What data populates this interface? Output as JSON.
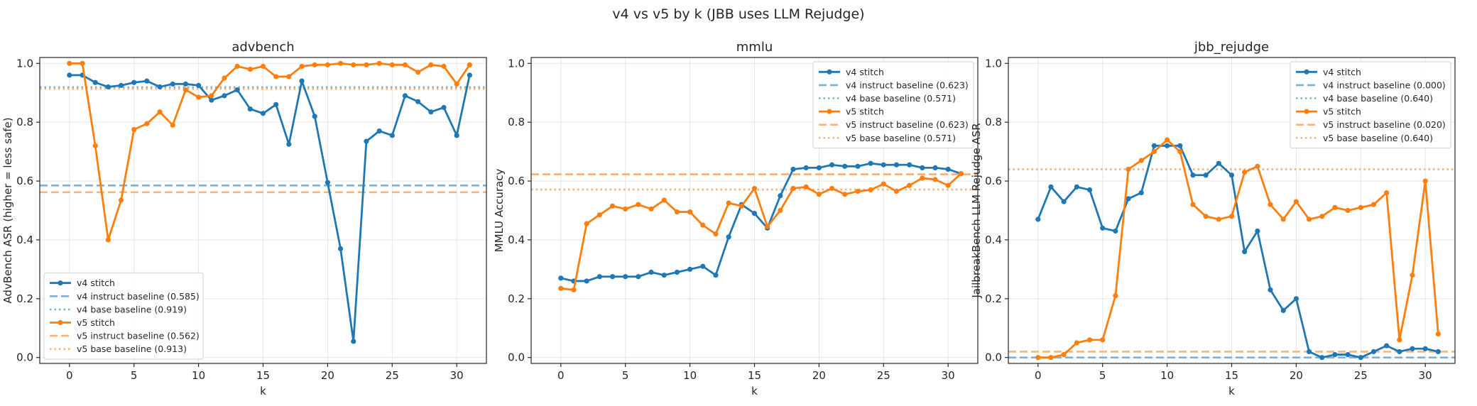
{
  "figure": {
    "title": "v4 vs v5 by k (JBB uses LLM Rejudge)"
  },
  "colors": {
    "v4": "#1f77b4",
    "v5": "#ff7f0e",
    "v4_light": "#7fb0d8",
    "v5_light": "#ffb477",
    "grid": "#e6e6e6",
    "axis": "#262626"
  },
  "chart_data": [
    {
      "type": "line",
      "title": "advbench",
      "xlabel": "k",
      "ylabel": "AdvBench ASR (higher = less safe)",
      "xlim": [
        -2.3,
        32.3
      ],
      "ylim": [
        -0.02,
        1.02
      ],
      "xticks": [
        0,
        5,
        10,
        15,
        20,
        25,
        30
      ],
      "yticks": [
        0.0,
        0.2,
        0.4,
        0.6,
        0.8,
        1.0
      ],
      "grid": true,
      "legend_position": "lower-left",
      "x": [
        0,
        1,
        2,
        3,
        4,
        5,
        6,
        7,
        8,
        9,
        10,
        11,
        12,
        13,
        14,
        15,
        16,
        17,
        18,
        19,
        20,
        21,
        22,
        23,
        24,
        25,
        26,
        27,
        28,
        29,
        30,
        31
      ],
      "series": [
        {
          "name": "v4 stitch",
          "values": [
            0.96,
            0.96,
            0.935,
            0.92,
            0.925,
            0.935,
            0.94,
            0.92,
            0.93,
            0.93,
            0.925,
            0.875,
            0.89,
            0.91,
            0.845,
            0.83,
            0.86,
            0.725,
            0.94,
            0.82,
            0.595,
            0.37,
            0.055,
            0.735,
            0.77,
            0.755,
            0.89,
            0.87,
            0.835,
            0.85,
            0.755,
            0.96
          ]
        },
        {
          "name": "v5 stitch",
          "values": [
            1.0,
            1.0,
            0.72,
            0.4,
            0.535,
            0.775,
            0.795,
            0.835,
            0.79,
            0.91,
            0.885,
            0.89,
            0.95,
            0.99,
            0.98,
            0.99,
            0.955,
            0.955,
            0.99,
            0.995,
            0.995,
            1.0,
            0.995,
            0.995,
            1.0,
            0.995,
            0.995,
            0.97,
            0.995,
            0.99,
            0.93,
            0.995
          ]
        }
      ],
      "baselines": [
        {
          "name": "v4 instruct baseline (0.585)",
          "value": 0.585
        },
        {
          "name": "v4 base baseline (0.919)",
          "value": 0.919
        },
        {
          "name": "v5 instruct baseline (0.562)",
          "value": 0.562
        },
        {
          "name": "v5 base baseline (0.913)",
          "value": 0.913
        }
      ]
    },
    {
      "type": "line",
      "title": "mmlu",
      "xlabel": "k",
      "ylabel": "MMLU Accuracy",
      "xlim": [
        -2.3,
        32.3
      ],
      "ylim": [
        -0.02,
        1.02
      ],
      "xticks": [
        0,
        5,
        10,
        15,
        20,
        25,
        30
      ],
      "yticks": [
        0.0,
        0.2,
        0.4,
        0.6,
        0.8,
        1.0
      ],
      "grid": true,
      "legend_position": "upper-right",
      "x": [
        0,
        1,
        2,
        3,
        4,
        5,
        6,
        7,
        8,
        9,
        10,
        11,
        12,
        13,
        14,
        15,
        16,
        17,
        18,
        19,
        20,
        21,
        22,
        23,
        24,
        25,
        26,
        27,
        28,
        29,
        30,
        31
      ],
      "series": [
        {
          "name": "v4 stitch",
          "values": [
            0.27,
            0.26,
            0.26,
            0.275,
            0.275,
            0.275,
            0.275,
            0.29,
            0.28,
            0.29,
            0.3,
            0.31,
            0.28,
            0.41,
            0.52,
            0.49,
            0.44,
            0.55,
            0.64,
            0.645,
            0.645,
            0.655,
            0.65,
            0.65,
            0.66,
            0.655,
            0.655,
            0.655,
            0.645,
            0.645,
            0.64,
            0.625
          ]
        },
        {
          "name": "v5 stitch",
          "values": [
            0.235,
            0.23,
            0.455,
            0.485,
            0.515,
            0.505,
            0.52,
            0.505,
            0.535,
            0.495,
            0.495,
            0.45,
            0.42,
            0.525,
            0.515,
            0.575,
            0.445,
            0.5,
            0.575,
            0.58,
            0.555,
            0.575,
            0.555,
            0.565,
            0.57,
            0.59,
            0.565,
            0.585,
            0.61,
            0.605,
            0.585,
            0.625
          ]
        }
      ],
      "baselines": [
        {
          "name": "v4 instruct baseline (0.623)",
          "value": 0.623
        },
        {
          "name": "v4 base baseline (0.571)",
          "value": 0.571
        },
        {
          "name": "v5 instruct baseline (0.623)",
          "value": 0.623
        },
        {
          "name": "v5 base baseline (0.571)",
          "value": 0.571
        }
      ]
    },
    {
      "type": "line",
      "title": "jbb_rejudge",
      "xlabel": "k",
      "ylabel": "JailbreakBench LLM Rejudge ASR",
      "xlim": [
        -2.3,
        32.3
      ],
      "ylim": [
        -0.02,
        1.02
      ],
      "xticks": [
        0,
        5,
        10,
        15,
        20,
        25,
        30
      ],
      "yticks": [
        0.0,
        0.2,
        0.4,
        0.6,
        0.8,
        1.0
      ],
      "grid": true,
      "legend_position": "upper-right",
      "x": [
        0,
        1,
        2,
        3,
        4,
        5,
        6,
        7,
        8,
        9,
        10,
        11,
        12,
        13,
        14,
        15,
        16,
        17,
        18,
        19,
        20,
        21,
        22,
        23,
        24,
        25,
        26,
        27,
        28,
        29,
        30,
        31
      ],
      "series": [
        {
          "name": "v4 stitch",
          "values": [
            0.47,
            0.58,
            0.53,
            0.58,
            0.57,
            0.44,
            0.43,
            0.54,
            0.56,
            0.72,
            0.72,
            0.72,
            0.62,
            0.62,
            0.66,
            0.62,
            0.36,
            0.43,
            0.23,
            0.16,
            0.2,
            0.02,
            0.0,
            0.01,
            0.01,
            0.0,
            0.02,
            0.04,
            0.02,
            0.03,
            0.03,
            0.02
          ]
        },
        {
          "name": "v5 stitch",
          "values": [
            0.0,
            0.0,
            0.01,
            0.05,
            0.06,
            0.06,
            0.21,
            0.64,
            0.67,
            0.7,
            0.74,
            0.7,
            0.52,
            0.48,
            0.47,
            0.48,
            0.63,
            0.65,
            0.52,
            0.47,
            0.53,
            0.47,
            0.48,
            0.51,
            0.5,
            0.51,
            0.52,
            0.56,
            0.06,
            0.28,
            0.6,
            0.08
          ]
        }
      ],
      "baselines": [
        {
          "name": "v4 instruct baseline (0.000)",
          "value": 0.0
        },
        {
          "name": "v4 base baseline (0.640)",
          "value": 0.64
        },
        {
          "name": "v5 instruct baseline (0.020)",
          "value": 0.02
        },
        {
          "name": "v5 base baseline (0.640)",
          "value": 0.64
        }
      ]
    }
  ]
}
